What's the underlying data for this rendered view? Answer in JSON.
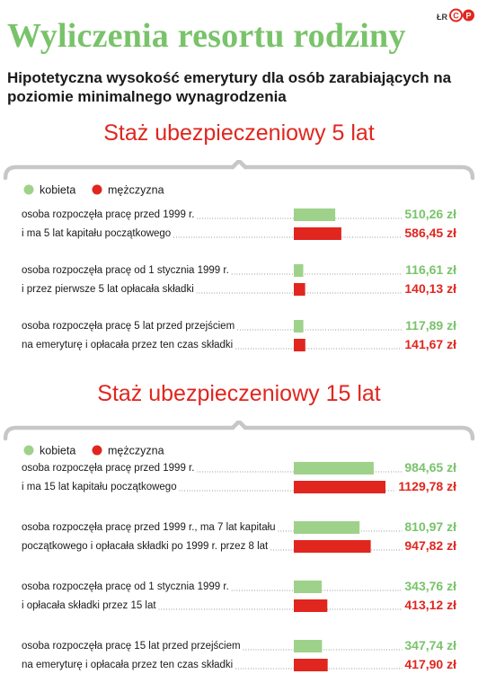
{
  "header": {
    "title": "Wyliczenia resortu rodziny",
    "credit": "ŁR",
    "logo_text": "CP",
    "subtitle": "Hipotetyczna wysokość emerytury dla osób zarabiających na poziomie minimalnego wynagrodzenia"
  },
  "colors": {
    "kobieta": "#9ed28a",
    "mezczyzna": "#e0261f",
    "title_green": "#79c36a",
    "bracket": "#c7c7c7"
  },
  "chart_data": [
    {
      "type": "bar",
      "orientation": "horizontal",
      "title": "Staż ubezpieczeniowy 5 lat",
      "unit": "zł",
      "legend": [
        "kobieta",
        "mężczyzna"
      ],
      "legend_placement": "top-left",
      "series": [
        {
          "name": "kobieta",
          "values": [
            510.26,
            116.61,
            117.89
          ],
          "labels": [
            "510,26 zł",
            "116,61 zł",
            "117,89 zł"
          ]
        },
        {
          "name": "mężczyzna",
          "values": [
            586.45,
            140.13,
            141.67
          ],
          "labels": [
            "586,45 zł",
            "140,13 zł",
            "141,67 zł"
          ]
        }
      ],
      "groups": [
        {
          "line1": "osoba rozpoczęła pracę przed 1999 r.",
          "line2": "i ma 5 lat kapitału początkowego"
        },
        {
          "line1": "osoba rozpoczęła pracę od 1 stycznia 1999 r.",
          "line2": "i przez pierwsze 5 lat opłacała składki"
        },
        {
          "line1": "osoba rozpoczęła pracę 5 lat przed przejściem",
          "line2": "na emeryturę i opłacała przez ten czas składki"
        }
      ]
    },
    {
      "type": "bar",
      "orientation": "horizontal",
      "title": "Staż ubezpieczeniowy 15 lat",
      "unit": "zł",
      "legend": [
        "kobieta",
        "mężczyzna"
      ],
      "legend_placement": "top-left",
      "series": [
        {
          "name": "kobieta",
          "values": [
            984.65,
            810.97,
            343.76,
            347.74
          ],
          "labels": [
            "984,65 zł",
            "810,97 zł",
            "343,76 zł",
            "347,74 zł"
          ]
        },
        {
          "name": "mężczyzna",
          "values": [
            1129.78,
            947.82,
            413.12,
            417.9
          ],
          "labels": [
            "1129,78 zł",
            "947,82 zł",
            "413,12 zł",
            "417,90 zł"
          ]
        }
      ],
      "groups": [
        {
          "line1": "osoba rozpoczęła pracę przed 1999 r.",
          "line2": "i ma 15 lat kapitału początkowego"
        },
        {
          "line1": "osoba rozpoczęła pracę przed 1999 r., ma 7 lat kapitału",
          "line2": "początkowego i opłacała składki po 1999 r. przez 8 lat"
        },
        {
          "line1": "osoba rozpoczęła pracę od 1 stycznia 1999 r.",
          "line2": "i opłacała składki przez 15 lat"
        },
        {
          "line1": "osoba rozpoczęła pracę 15 lat przed przejściem",
          "line2": "na emeryturę i opłacała przez ten czas składki"
        }
      ]
    }
  ]
}
